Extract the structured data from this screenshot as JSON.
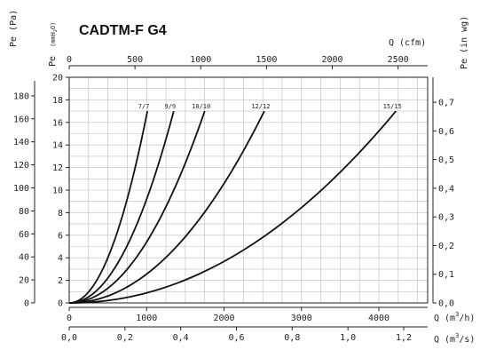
{
  "chart_data": {
    "type": "line",
    "title": "CADTM-F G4",
    "axes": {
      "left_outer": {
        "label": "Pe (Pa)",
        "ticks": [
          "0",
          "20",
          "40",
          "60",
          "80",
          "100",
          "120",
          "140",
          "160",
          "180"
        ],
        "range": [
          0,
          196.1
        ]
      },
      "left_inner": {
        "label": "Pe (mmH2O)",
        "label_main": "Pe",
        "label_unit": "(mmH",
        "label_sub": "2",
        "label_end": "O)",
        "ticks": [
          "0",
          "2",
          "4",
          "6",
          "8",
          "10",
          "12",
          "14",
          "16",
          "18",
          "20"
        ],
        "range": [
          0,
          20
        ]
      },
      "right": {
        "label": "Pe (in wg)",
        "ticks": [
          "0,0",
          "0,1",
          "0,2",
          "0,3",
          "0,4",
          "0,5",
          "0,6",
          "0,7"
        ],
        "range": [
          0,
          0.787
        ]
      },
      "top": {
        "label": "Q (cfm)",
        "ticks": [
          "0",
          "500",
          "1000",
          "1500",
          "2000",
          "2500"
        ],
        "range": [
          0,
          2725
        ]
      },
      "bottom_1": {
        "label_pre": "Q (m",
        "label_sup": "3",
        "label_post": "/h)",
        "ticks": [
          "0",
          "1000",
          "2000",
          "3000",
          "4000"
        ],
        "range": [
          0,
          4630
        ]
      },
      "bottom_2": {
        "label_pre": "Q (m",
        "label_sup": "3",
        "label_post": "/s)",
        "ticks": [
          "0,0",
          "0,2",
          "0,4",
          "0,6",
          "0,8",
          "1,0",
          "1,2"
        ],
        "range": [
          0,
          1.286
        ]
      }
    },
    "x_unit": "m3/h",
    "y_unit": "mmH2O",
    "grid": true,
    "series": [
      {
        "name": "7/7",
        "curve_exponent": 2.05,
        "points": [
          [
            0,
            0
          ],
          [
            200,
            0.6
          ],
          [
            400,
            2.6
          ],
          [
            600,
            6.1
          ],
          [
            800,
            11.0
          ],
          [
            1010,
            17.0
          ]
        ]
      },
      {
        "name": "9/9",
        "curve_exponent": 2.05,
        "points": [
          [
            0,
            0
          ],
          [
            300,
            0.9
          ],
          [
            600,
            3.5
          ],
          [
            900,
            8.2
          ],
          [
            1200,
            14.5
          ],
          [
            1350,
            17.0
          ]
        ]
      },
      {
        "name": "10/10",
        "curve_exponent": 2.05,
        "points": [
          [
            0,
            0
          ],
          [
            400,
            0.9
          ],
          [
            800,
            3.6
          ],
          [
            1200,
            8.5
          ],
          [
            1600,
            14.3
          ],
          [
            1750,
            17.0
          ]
        ]
      },
      {
        "name": "12/12",
        "curve_exponent": 2.05,
        "points": [
          [
            0,
            0
          ],
          [
            600,
            1.0
          ],
          [
            1200,
            4.0
          ],
          [
            1800,
            8.9
          ],
          [
            2400,
            15.2
          ],
          [
            2520,
            17.0
          ]
        ]
      },
      {
        "name": "15/15",
        "curve_exponent": 2.05,
        "points": [
          [
            0,
            0
          ],
          [
            1000,
            1.3
          ],
          [
            2000,
            5.2
          ],
          [
            3000,
            9.8
          ],
          [
            4000,
            15.6
          ],
          [
            4220,
            17.0
          ]
        ]
      }
    ]
  }
}
